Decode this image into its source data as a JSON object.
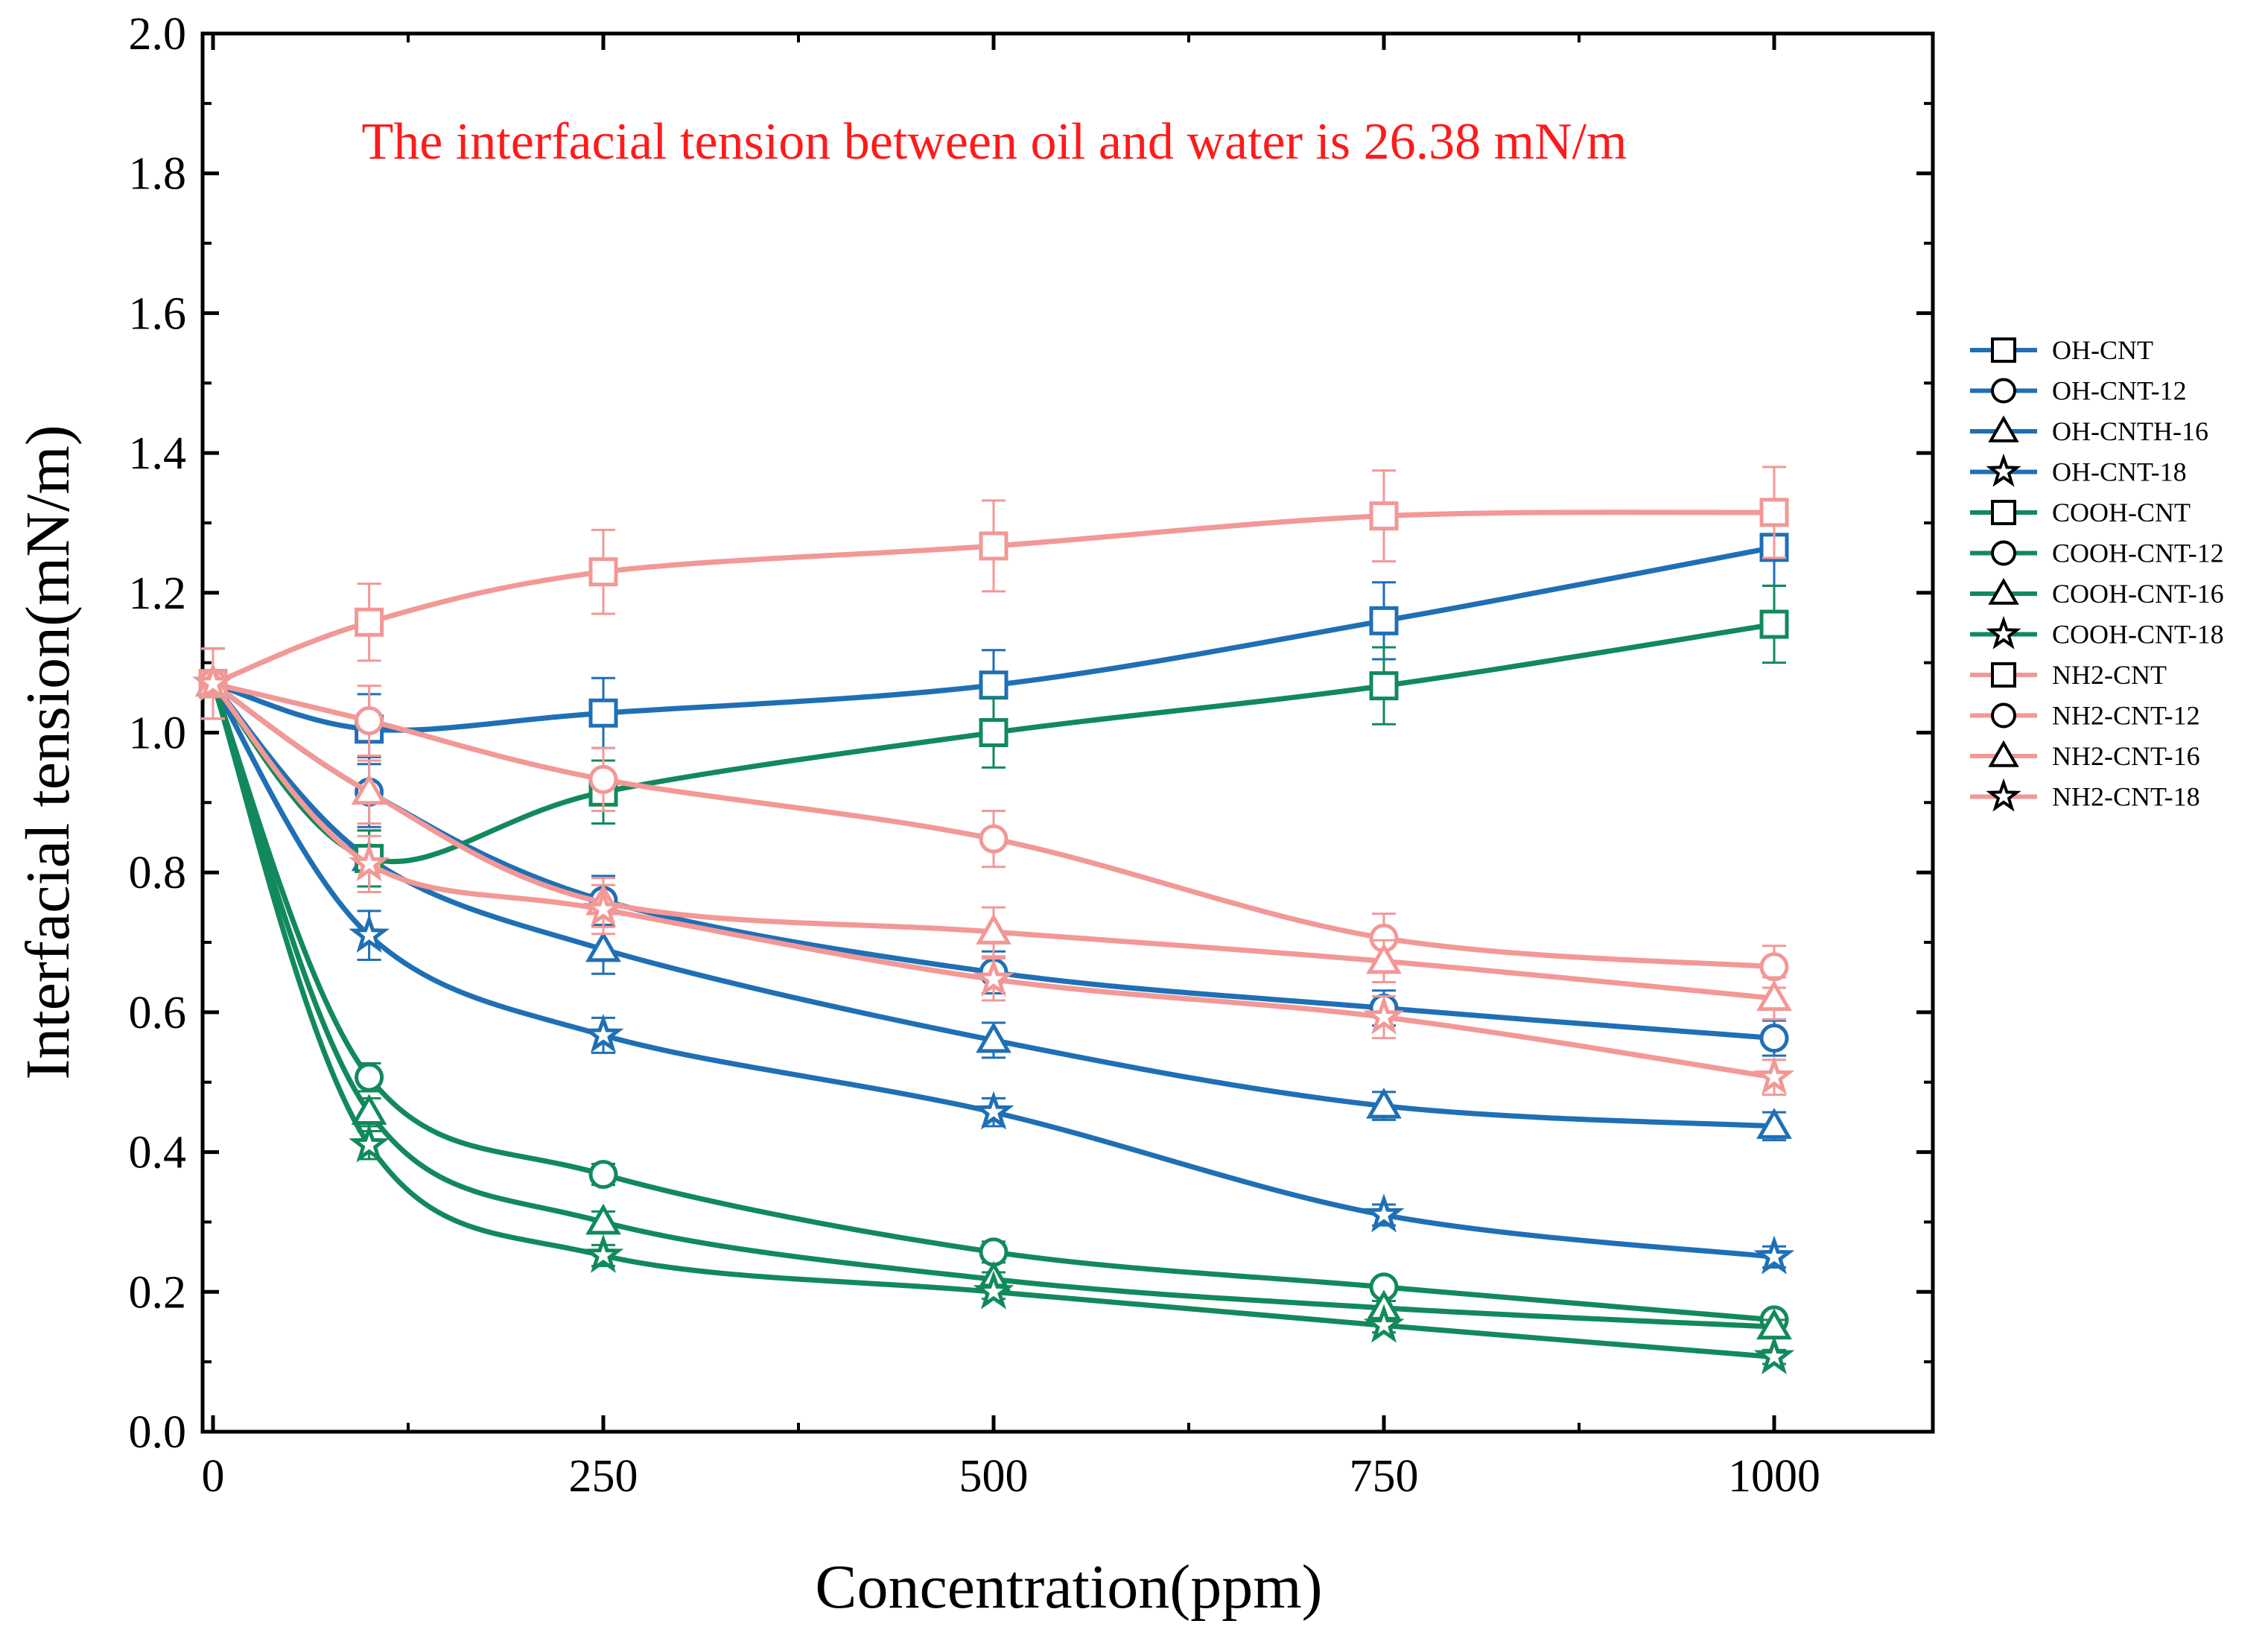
{
  "chart_data": {
    "type": "line",
    "title": "",
    "annotation": "The interfacial tension between oil and water is 26.38 mN/m",
    "xlabel": "Concentration(ppm)",
    "ylabel": "Interfacial tension(mN/m)",
    "xlim": [
      -10,
      1100
    ],
    "ylim": [
      0.0,
      2.0
    ],
    "x_ticks": [
      0,
      250,
      500,
      750,
      1000
    ],
    "x_tick_labels": [
      "0",
      "250",
      "500",
      "750",
      "1000"
    ],
    "y_ticks": [
      0.0,
      0.2,
      0.4,
      0.6,
      0.8,
      1.0,
      1.2,
      1.4,
      1.6,
      1.8,
      2.0
    ],
    "y_tick_labels": [
      "0.0",
      "0.2",
      "0.4",
      "0.6",
      "0.8",
      "1.0",
      "1.2",
      "1.4",
      "1.6",
      "1.8",
      "2.0"
    ],
    "grid": false,
    "legend_position": "outside-right",
    "x": [
      0,
      100,
      250,
      500,
      750,
      1000
    ],
    "series": [
      {
        "name": "OH-CNT",
        "color": "#1f6fb5",
        "marker": "square",
        "values": [
          1.07,
          1.005,
          1.028,
          1.068,
          1.16,
          1.265
        ],
        "errors": [
          0.05,
          0.05,
          0.05,
          0.05,
          0.055,
          0.055
        ]
      },
      {
        "name": "OH-CNT-12",
        "color": "#1f6fb5",
        "marker": "circle",
        "values": [
          1.07,
          0.915,
          0.76,
          0.657,
          0.606,
          0.563
        ],
        "errors": [
          0.05,
          0.05,
          0.035,
          0.03,
          0.025,
          0.025
        ]
      },
      {
        "name": "OH-CNTH-16",
        "color": "#1f6fb5",
        "marker": "triangle",
        "values": [
          1.07,
          0.82,
          0.69,
          0.56,
          0.466,
          0.437
        ],
        "errors": [
          0.05,
          0.04,
          0.035,
          0.025,
          0.02,
          0.02
        ]
      },
      {
        "name": "OH-CNT-18",
        "color": "#1f6fb5",
        "marker": "star",
        "values": [
          1.07,
          0.71,
          0.567,
          0.457,
          0.31,
          0.25
        ],
        "errors": [
          0.05,
          0.035,
          0.025,
          0.02,
          0.015,
          0.015
        ]
      },
      {
        "name": "COOH-CNT",
        "color": "#12895c",
        "marker": "square",
        "values": [
          1.07,
          0.82,
          0.915,
          1.0,
          1.067,
          1.155
        ],
        "errors": [
          0.05,
          0.04,
          0.045,
          0.05,
          0.055,
          0.055
        ]
      },
      {
        "name": "COOH-CNT-12",
        "color": "#12895c",
        "marker": "circle",
        "values": [
          1.07,
          0.507,
          0.368,
          0.257,
          0.207,
          0.16
        ],
        "errors": [
          0.05,
          0.02,
          0.015,
          0.015,
          0.01,
          0.01
        ]
      },
      {
        "name": "COOH-CNT-16",
        "color": "#12895c",
        "marker": "triangle",
        "values": [
          1.07,
          0.457,
          0.3,
          0.218,
          0.177,
          0.15
        ],
        "errors": [
          0.05,
          0.02,
          0.015,
          0.01,
          0.01,
          0.01
        ]
      },
      {
        "name": "COOH-CNT-18",
        "color": "#12895c",
        "marker": "star",
        "values": [
          1.07,
          0.41,
          0.252,
          0.2,
          0.152,
          0.107
        ],
        "errors": [
          0.05,
          0.02,
          0.015,
          0.01,
          0.01,
          0.01
        ]
      },
      {
        "name": "NH2-CNT",
        "color": "#f29896",
        "marker": "square",
        "values": [
          1.07,
          1.158,
          1.23,
          1.267,
          1.31,
          1.315
        ],
        "errors": [
          0.05,
          0.055,
          0.06,
          0.065,
          0.065,
          0.065
        ]
      },
      {
        "name": "NH2-CNT-12",
        "color": "#f29896",
        "marker": "circle",
        "values": [
          1.07,
          1.017,
          0.933,
          0.848,
          0.706,
          0.665
        ],
        "errors": [
          0.05,
          0.05,
          0.045,
          0.04,
          0.035,
          0.03
        ]
      },
      {
        "name": "NH2-CNT-16",
        "color": "#f29896",
        "marker": "triangle",
        "values": [
          1.07,
          0.915,
          0.757,
          0.715,
          0.673,
          0.62
        ],
        "errors": [
          0.05,
          0.045,
          0.035,
          0.035,
          0.03,
          0.03
        ]
      },
      {
        "name": "NH2-CNT-18",
        "color": "#f29896",
        "marker": "star",
        "values": [
          1.07,
          0.812,
          0.747,
          0.647,
          0.593,
          0.507
        ],
        "errors": [
          0.05,
          0.04,
          0.035,
          0.03,
          0.03,
          0.025
        ]
      }
    ]
  }
}
